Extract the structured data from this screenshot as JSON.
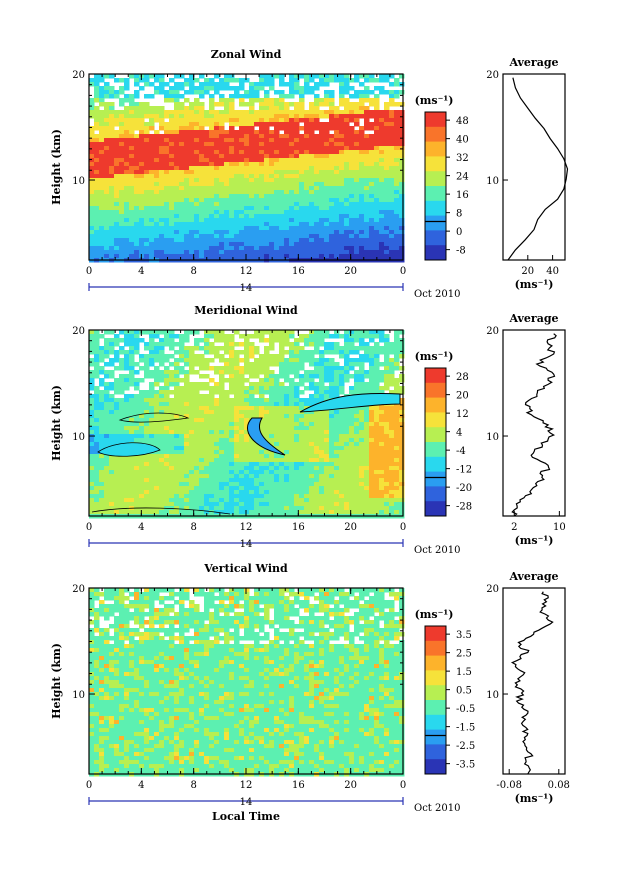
{
  "chart_data": [
    {
      "type": "heatmap",
      "title": "Zonal Wind",
      "ylabel": "Height (km)",
      "y_ticks": [
        "20",
        "10"
      ],
      "x_ticks": [
        "0",
        "4",
        "8",
        "12",
        "16",
        "20",
        "0"
      ],
      "date_day": "14",
      "date_label": "Oct 2010",
      "ylim": [
        2,
        20
      ],
      "xlim": [
        0,
        24
      ],
      "colorbar": {
        "unit": "(ms⁻¹)",
        "labels": [
          "48",
          "40",
          "32",
          "24",
          "16",
          "8",
          "0",
          "-8"
        ],
        "colors": [
          "#ee3a2d",
          "#f9742a",
          "#fdb32b",
          "#f6e23a",
          "#b7ef52",
          "#5cf0b1",
          "#29d8ee",
          "#2a9ef1",
          "#2f63dd",
          "#2a34b5"
        ]
      },
      "profile": {
        "title": "Average",
        "y_ticks": [
          "20",
          "10"
        ],
        "x_ticks": [
          "20",
          "40"
        ],
        "xlabel": "(ms⁻¹)",
        "xlim": [
          0,
          50
        ],
        "heights": [
          2,
          3,
          4,
          5,
          6,
          7,
          8,
          9,
          10,
          11,
          12,
          13,
          14,
          15,
          16,
          17,
          18,
          19,
          20
        ],
        "values": [
          4,
          10,
          18,
          25,
          28,
          34,
          44,
          49,
          51,
          52,
          49,
          44,
          38,
          33,
          26,
          20,
          14,
          10,
          8
        ]
      }
    },
    {
      "type": "heatmap",
      "title": "Meridional Wind",
      "ylabel": "Height (km)",
      "y_ticks": [
        "20",
        "10"
      ],
      "x_ticks": [
        "0",
        "4",
        "8",
        "12",
        "16",
        "20",
        "0"
      ],
      "date_day": "14",
      "date_label": "Oct 2010",
      "ylim": [
        2,
        20
      ],
      "xlim": [
        0,
        24
      ],
      "colorbar": {
        "unit": "(ms⁻¹)",
        "labels": [
          "28",
          "20",
          "12",
          "4",
          "-4",
          "-12",
          "-20",
          "-28"
        ],
        "colors": [
          "#ee3a2d",
          "#f9742a",
          "#fdb32b",
          "#f6e23a",
          "#b7ef52",
          "#5cf0b1",
          "#29d8ee",
          "#2a9ef1",
          "#2f63dd",
          "#2a34b5"
        ]
      },
      "profile": {
        "title": "Average",
        "y_ticks": [
          "20",
          "10"
        ],
        "x_ticks": [
          "2",
          "10"
        ],
        "xlabel": "(ms⁻¹)",
        "xlim": [
          0,
          11
        ],
        "heights": [
          2,
          3,
          4,
          5,
          6,
          7,
          8,
          9,
          10,
          11,
          12,
          13,
          14,
          15,
          16,
          17,
          18,
          19,
          20
        ],
        "values": [
          2,
          2.5,
          4,
          6,
          7,
          8,
          5,
          7,
          9,
          8,
          5,
          4,
          6,
          8,
          9,
          6,
          9,
          8,
          9
        ]
      }
    },
    {
      "type": "heatmap",
      "title": "Vertical Wind",
      "ylabel": "Height (km)",
      "xlabel": "Local Time",
      "y_ticks": [
        "20",
        "10"
      ],
      "x_ticks": [
        "0",
        "4",
        "8",
        "12",
        "16",
        "20",
        "0"
      ],
      "date_day": "14",
      "date_label": "Oct 2010",
      "ylim": [
        2,
        20
      ],
      "xlim": [
        0,
        24
      ],
      "colorbar": {
        "unit": "(ms⁻¹)",
        "labels": [
          "3.5",
          "2.5",
          "1.5",
          "0.5",
          "-0.5",
          "-1.5",
          "-2.5",
          "-3.5"
        ],
        "colors": [
          "#ee3a2d",
          "#f9742a",
          "#fdb32b",
          "#f6e23a",
          "#b7ef52",
          "#5cf0b1",
          "#29d8ee",
          "#2a9ef1",
          "#2f63dd",
          "#2a34b5"
        ]
      },
      "profile": {
        "title": "Average",
        "y_ticks": [
          "20",
          "10"
        ],
        "x_ticks": [
          "-0.08",
          "0.08"
        ],
        "xlabel": "(ms⁻¹)",
        "xlim": [
          -0.1,
          0.1
        ],
        "heights": [
          2,
          3,
          4,
          5,
          6,
          7,
          8,
          9,
          10,
          11,
          12,
          13,
          14,
          15,
          16,
          17,
          18,
          19,
          20
        ],
        "values": [
          -0.02,
          -0.03,
          -0.01,
          -0.03,
          -0.02,
          -0.04,
          -0.02,
          -0.05,
          -0.04,
          -0.06,
          -0.03,
          -0.07,
          -0.02,
          -0.05,
          0.0,
          0.06,
          0.02,
          0.04,
          0.03
        ]
      }
    }
  ]
}
